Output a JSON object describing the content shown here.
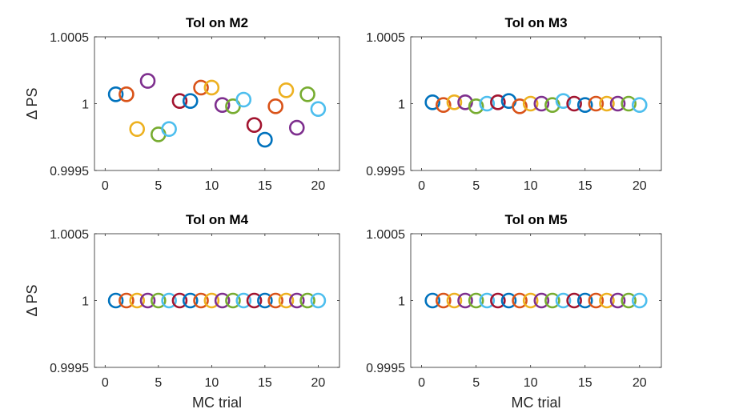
{
  "chart_data": [
    {
      "type": "scatter",
      "title": "Tol on M2",
      "xlabel": "",
      "ylabel": "Δ PS",
      "xlim": [
        -1,
        22
      ],
      "ylim": [
        0.9995,
        1.0005
      ],
      "xticks": [
        "0",
        "5",
        "10",
        "15",
        "20"
      ],
      "yticks": [
        "0.9995",
        "1",
        "1.0005"
      ],
      "x": [
        1,
        2,
        3,
        4,
        5,
        6,
        7,
        8,
        9,
        10,
        11,
        12,
        13,
        14,
        15,
        16,
        17,
        18,
        19,
        20
      ],
      "y": [
        1.00007,
        1.00007,
        0.99981,
        1.00017,
        0.99977,
        0.99981,
        1.00002,
        1.00002,
        1.00012,
        1.00012,
        0.99999,
        0.99998,
        1.00003,
        0.99984,
        0.99973,
        0.99998,
        1.0001,
        0.99982,
        1.00007,
        0.99996
      ]
    },
    {
      "type": "scatter",
      "title": "Tol on M3",
      "xlabel": "",
      "ylabel": "",
      "xlim": [
        -1,
        22
      ],
      "ylim": [
        0.9995,
        1.0005
      ],
      "xticks": [
        "0",
        "5",
        "10",
        "15",
        "20"
      ],
      "yticks": [
        "0.9995",
        "1",
        "1.0005"
      ],
      "x": [
        1,
        2,
        3,
        4,
        5,
        6,
        7,
        8,
        9,
        10,
        11,
        12,
        13,
        14,
        15,
        16,
        17,
        18,
        19,
        20
      ],
      "y": [
        1.00001,
        0.99999,
        1.00001,
        1.00001,
        0.99998,
        1.0,
        1.00001,
        1.00002,
        0.99998,
        1.0,
        1.0,
        0.99999,
        1.00002,
        1.0,
        0.99999,
        1.0,
        1.0,
        1.0,
        1.0,
        0.99999
      ]
    },
    {
      "type": "scatter",
      "title": "Tol on M4",
      "xlabel": "MC trial",
      "ylabel": "Δ PS",
      "xlim": [
        -1,
        22
      ],
      "ylim": [
        0.9995,
        1.0005
      ],
      "xticks": [
        "0",
        "5",
        "10",
        "15",
        "20"
      ],
      "yticks": [
        "0.9995",
        "1",
        "1.0005"
      ],
      "x": [
        1,
        2,
        3,
        4,
        5,
        6,
        7,
        8,
        9,
        10,
        11,
        12,
        13,
        14,
        15,
        16,
        17,
        18,
        19,
        20
      ],
      "y": [
        1,
        1,
        1,
        1,
        1,
        1,
        1,
        1,
        1,
        1,
        1,
        1,
        1,
        1,
        1,
        1,
        1,
        1,
        1,
        1
      ]
    },
    {
      "type": "scatter",
      "title": "Tol on M5",
      "xlabel": "MC trial",
      "ylabel": "",
      "xlim": [
        -1,
        22
      ],
      "ylim": [
        0.9995,
        1.0005
      ],
      "xticks": [
        "0",
        "5",
        "10",
        "15",
        "20"
      ],
      "yticks": [
        "0.9995",
        "1",
        "1.0005"
      ],
      "x": [
        1,
        2,
        3,
        4,
        5,
        6,
        7,
        8,
        9,
        10,
        11,
        12,
        13,
        14,
        15,
        16,
        17,
        18,
        19,
        20
      ],
      "y": [
        1,
        1,
        1,
        1,
        1,
        1,
        1,
        1,
        1,
        1,
        1,
        1,
        1,
        1,
        1,
        1,
        1,
        1,
        1,
        1
      ]
    }
  ],
  "colors": [
    "#0072BD",
    "#D95319",
    "#EDB120",
    "#7E2F8E",
    "#77AC30",
    "#4DBEEE",
    "#A2142F"
  ],
  "marker": "open-circle"
}
